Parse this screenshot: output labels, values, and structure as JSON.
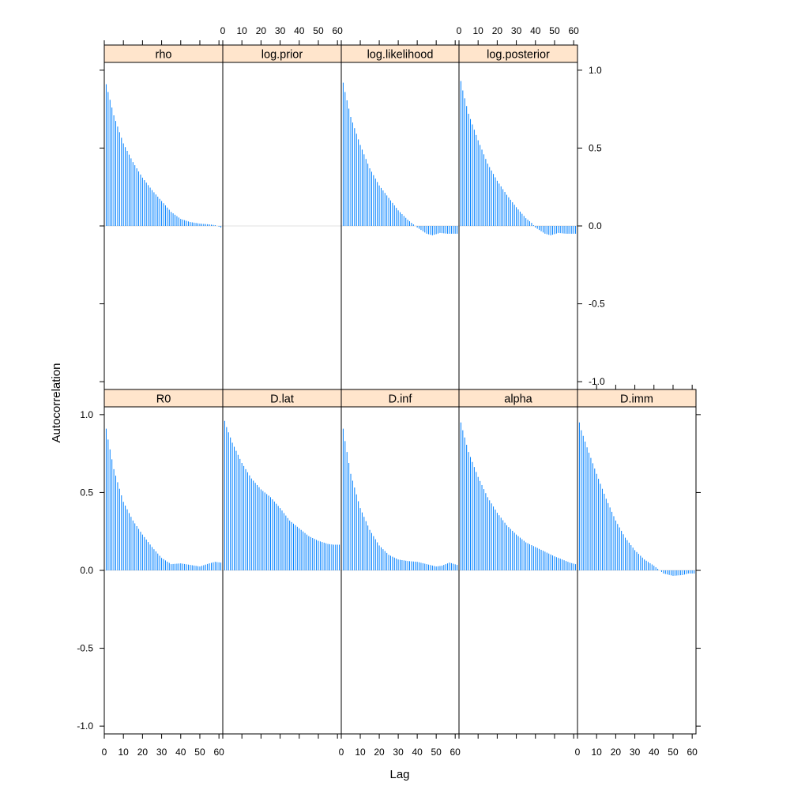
{
  "chart_data": {
    "type": "bar",
    "xlabel": "Lag",
    "ylabel": "Autocorrelation",
    "xlim": [
      0,
      62
    ],
    "ylim": [
      -1.05,
      1.05
    ],
    "x_ticks": [
      "0",
      "10",
      "20",
      "30",
      "40",
      "50",
      "60"
    ],
    "y_ticks": [
      "-1.0",
      "-0.5",
      "0.0",
      "0.5",
      "1.0"
    ],
    "colors": {
      "bars": "#0080ff",
      "strip": "#ffe5cc",
      "zero_line": "#e6e6e6"
    },
    "lags": {
      "from": 0,
      "to": 61,
      "step": 1
    },
    "panels": [
      {
        "name": "rho",
        "acf_keypoints": [
          [
            0,
            1.0
          ],
          [
            1,
            0.91
          ],
          [
            2,
            0.86
          ],
          [
            5,
            0.71
          ],
          [
            10,
            0.53
          ],
          [
            15,
            0.41
          ],
          [
            20,
            0.31
          ],
          [
            25,
            0.23
          ],
          [
            30,
            0.16
          ],
          [
            35,
            0.09
          ],
          [
            40,
            0.045
          ],
          [
            45,
            0.025
          ],
          [
            50,
            0.015
          ],
          [
            55,
            0.01
          ],
          [
            58,
            0.005
          ],
          [
            61,
            -0.01
          ]
        ]
      },
      {
        "name": "log.prior",
        "acf_keypoints": [
          [
            0,
            0.0
          ],
          [
            61,
            0.0
          ]
        ]
      },
      {
        "name": "log.likelihood",
        "acf_keypoints": [
          [
            0,
            1.0
          ],
          [
            1,
            0.92
          ],
          [
            2,
            0.86
          ],
          [
            5,
            0.7
          ],
          [
            10,
            0.52
          ],
          [
            15,
            0.37
          ],
          [
            20,
            0.26
          ],
          [
            25,
            0.18
          ],
          [
            30,
            0.1
          ],
          [
            35,
            0.04
          ],
          [
            38,
            0.01
          ],
          [
            40,
            -0.01
          ],
          [
            45,
            -0.05
          ],
          [
            48,
            -0.06
          ],
          [
            52,
            -0.045
          ],
          [
            56,
            -0.05
          ],
          [
            61,
            -0.05
          ]
        ]
      },
      {
        "name": "log.posterior",
        "acf_keypoints": [
          [
            0,
            1.0
          ],
          [
            1,
            0.93
          ],
          [
            2,
            0.87
          ],
          [
            5,
            0.72
          ],
          [
            10,
            0.55
          ],
          [
            15,
            0.4
          ],
          [
            20,
            0.29
          ],
          [
            25,
            0.2
          ],
          [
            30,
            0.12
          ],
          [
            35,
            0.05
          ],
          [
            38,
            0.02
          ],
          [
            40,
            -0.01
          ],
          [
            45,
            -0.05
          ],
          [
            48,
            -0.06
          ],
          [
            52,
            -0.045
          ],
          [
            56,
            -0.05
          ],
          [
            61,
            -0.05
          ]
        ]
      },
      {
        "name": "R0",
        "acf_keypoints": [
          [
            0,
            1.0
          ],
          [
            1,
            0.91
          ],
          [
            2,
            0.84
          ],
          [
            5,
            0.65
          ],
          [
            10,
            0.44
          ],
          [
            15,
            0.32
          ],
          [
            20,
            0.23
          ],
          [
            25,
            0.15
          ],
          [
            30,
            0.08
          ],
          [
            35,
            0.04
          ],
          [
            40,
            0.045
          ],
          [
            45,
            0.035
          ],
          [
            50,
            0.025
          ],
          [
            55,
            0.045
          ],
          [
            58,
            0.055
          ],
          [
            61,
            0.05
          ]
        ]
      },
      {
        "name": "D.lat",
        "acf_keypoints": [
          [
            0,
            1.0
          ],
          [
            1,
            0.96
          ],
          [
            2,
            0.92
          ],
          [
            5,
            0.82
          ],
          [
            10,
            0.69
          ],
          [
            15,
            0.59
          ],
          [
            20,
            0.52
          ],
          [
            25,
            0.47
          ],
          [
            30,
            0.4
          ],
          [
            35,
            0.32
          ],
          [
            40,
            0.27
          ],
          [
            45,
            0.22
          ],
          [
            50,
            0.19
          ],
          [
            55,
            0.17
          ],
          [
            58,
            0.165
          ],
          [
            61,
            0.165
          ]
        ]
      },
      {
        "name": "D.inf",
        "acf_keypoints": [
          [
            0,
            1.0
          ],
          [
            1,
            0.91
          ],
          [
            2,
            0.83
          ],
          [
            5,
            0.62
          ],
          [
            10,
            0.4
          ],
          [
            15,
            0.26
          ],
          [
            20,
            0.16
          ],
          [
            25,
            0.1
          ],
          [
            30,
            0.07
          ],
          [
            35,
            0.06
          ],
          [
            40,
            0.055
          ],
          [
            45,
            0.04
          ],
          [
            50,
            0.025
          ],
          [
            53,
            0.03
          ],
          [
            57,
            0.05
          ],
          [
            61,
            0.035
          ]
        ]
      },
      {
        "name": "alpha",
        "acf_keypoints": [
          [
            0,
            1.0
          ],
          [
            1,
            0.95
          ],
          [
            2,
            0.9
          ],
          [
            5,
            0.76
          ],
          [
            10,
            0.6
          ],
          [
            15,
            0.47
          ],
          [
            20,
            0.37
          ],
          [
            25,
            0.29
          ],
          [
            30,
            0.23
          ],
          [
            35,
            0.18
          ],
          [
            40,
            0.15
          ],
          [
            45,
            0.12
          ],
          [
            50,
            0.09
          ],
          [
            55,
            0.065
          ],
          [
            58,
            0.05
          ],
          [
            61,
            0.04
          ]
        ]
      },
      {
        "name": "D.imm",
        "acf_keypoints": [
          [
            0,
            1.0
          ],
          [
            1,
            0.95
          ],
          [
            2,
            0.9
          ],
          [
            5,
            0.79
          ],
          [
            10,
            0.62
          ],
          [
            15,
            0.46
          ],
          [
            20,
            0.32
          ],
          [
            25,
            0.21
          ],
          [
            30,
            0.13
          ],
          [
            35,
            0.07
          ],
          [
            40,
            0.03
          ],
          [
            42,
            0.01
          ],
          [
            45,
            -0.02
          ],
          [
            50,
            -0.035
          ],
          [
            55,
            -0.03
          ],
          [
            58,
            -0.02
          ],
          [
            61,
            -0.02
          ]
        ]
      }
    ]
  }
}
